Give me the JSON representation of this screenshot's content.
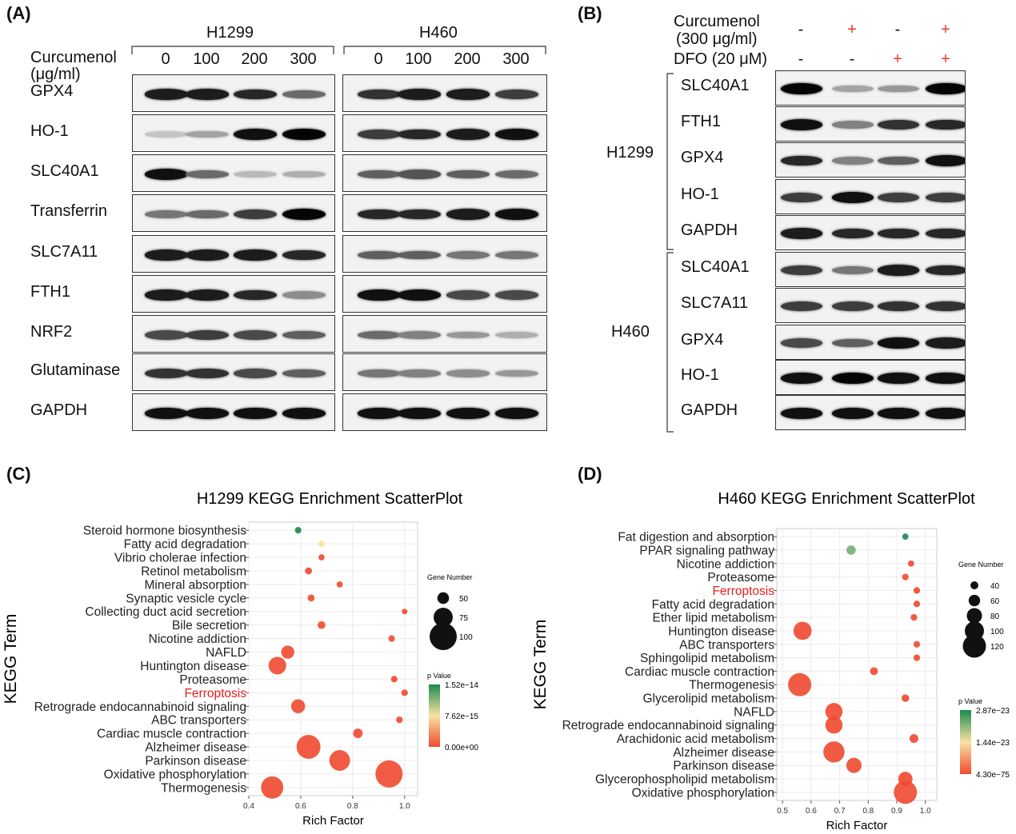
{
  "panels": {
    "A": "(A)",
    "B": "(B)",
    "C": "(C)",
    "D": "(D)"
  },
  "panelA": {
    "cell_lines": [
      "H1299",
      "H460"
    ],
    "treatment_label_line1": "Curcumenol",
    "treatment_label_line2": "(μg/ml)",
    "concentrations": [
      "0",
      "100",
      "200",
      "300"
    ],
    "proteins": [
      "GPX4",
      "HO-1",
      "SLC40A1",
      "Transferrin",
      "SLC7A11",
      "FTH1",
      "NRF2",
      "Glutaminase",
      "GAPDH"
    ],
    "band_intensity_h1299": [
      [
        0.9,
        0.9,
        0.85,
        0.55
      ],
      [
        0.15,
        0.3,
        0.95,
        1.0
      ],
      [
        0.95,
        0.55,
        0.2,
        0.25
      ],
      [
        0.5,
        0.55,
        0.75,
        1.0
      ],
      [
        0.9,
        0.9,
        0.9,
        0.85
      ],
      [
        0.9,
        0.9,
        0.85,
        0.4
      ],
      [
        0.7,
        0.75,
        0.7,
        0.6
      ],
      [
        0.8,
        0.8,
        0.7,
        0.6
      ],
      [
        0.95,
        0.95,
        0.95,
        0.95
      ]
    ],
    "band_intensity_h460": [
      [
        0.8,
        0.9,
        0.9,
        0.75
      ],
      [
        0.75,
        0.85,
        0.9,
        0.95
      ],
      [
        0.6,
        0.65,
        0.6,
        0.55
      ],
      [
        0.85,
        0.85,
        0.9,
        0.95
      ],
      [
        0.6,
        0.6,
        0.5,
        0.5
      ],
      [
        0.95,
        0.95,
        0.7,
        0.7
      ],
      [
        0.55,
        0.45,
        0.35,
        0.25
      ],
      [
        0.5,
        0.45,
        0.4,
        0.35
      ],
      [
        0.95,
        0.95,
        0.95,
        0.95
      ]
    ]
  },
  "panelB": {
    "treatment1_line1": "Curcumenol",
    "treatment1_line2": "(300 μg/ml)",
    "treatment2": "DFO (20 μM)",
    "treatment1_signs": [
      "-",
      "+",
      "-",
      "+"
    ],
    "treatment2_signs": [
      "-",
      "-",
      "+",
      "+"
    ],
    "groups": [
      {
        "name": "H1299",
        "proteins": [
          "SLC40A1",
          "FTH1",
          "GPX4",
          "HO-1",
          "GAPDH"
        ],
        "intensity": [
          [
            1.0,
            0.3,
            0.35,
            1.0
          ],
          [
            0.95,
            0.45,
            0.8,
            0.85
          ],
          [
            0.85,
            0.45,
            0.6,
            0.95
          ],
          [
            0.75,
            0.95,
            0.75,
            0.75
          ],
          [
            0.9,
            0.85,
            0.85,
            0.85
          ]
        ]
      },
      {
        "name": "H460",
        "proteins": [
          "SLC40A1",
          "SLC7A11",
          "GPX4",
          "HO-1",
          "GAPDH"
        ],
        "intensity": [
          [
            0.75,
            0.5,
            0.9,
            0.85
          ],
          [
            0.75,
            0.75,
            0.8,
            0.8
          ],
          [
            0.7,
            0.6,
            0.95,
            0.9
          ],
          [
            0.95,
            1.0,
            0.95,
            0.95
          ],
          [
            0.95,
            0.95,
            0.95,
            0.95
          ]
        ]
      }
    ]
  },
  "panelC": {
    "chart_data": {
      "type": "scatter",
      "title": "H1299 KEGG Enrichment ScatterPlot",
      "xlabel": "Rich Factor",
      "ylabel": "KEGG Term",
      "xlim": [
        0.4,
        1.05
      ],
      "xticks": [
        "0.4",
        "0.6",
        "0.8",
        "1.0"
      ],
      "xtick_values": [
        0.4,
        0.6,
        0.8,
        1.0
      ],
      "terms": [
        "Steroid hormone biosynthesis",
        "Fatty acid degradation",
        "Vibrio cholerae infection",
        "Retinol metabolism",
        "Mineral absorption",
        "Synaptic vesicle cycle",
        "Collecting duct acid secretion",
        "Bile secretion",
        "Nicotine addiction",
        "NAFLD",
        "Huntington disease",
        "Proteasome",
        "Ferroptosis",
        "Retrograde endocannabinoid signaling",
        "ABC transporters",
        "Cardiac muscle contraction",
        "Alzheimer disease",
        "Parkinson disease",
        "Oxidative phosphorylation",
        "Thermogenesis"
      ],
      "rich_factor": [
        0.59,
        0.68,
        0.68,
        0.63,
        0.75,
        0.64,
        1.0,
        0.68,
        0.95,
        0.55,
        0.51,
        0.96,
        1.0,
        0.59,
        0.98,
        0.82,
        0.63,
        0.75,
        0.94,
        0.49
      ],
      "gene_number": [
        30,
        30,
        28,
        32,
        28,
        32,
        25,
        35,
        30,
        55,
        70,
        30,
        30,
        58,
        30,
        42,
        90,
        80,
        100,
        85
      ],
      "p_value_rank": [
        1.0,
        0.5,
        0.0,
        0.0,
        0.0,
        0.0,
        0.0,
        0.0,
        0.0,
        0.0,
        0.0,
        0.0,
        0.0,
        0.0,
        0.0,
        0.0,
        0.0,
        0.0,
        0.0,
        0.0
      ],
      "highlight_term": "Ferroptosis",
      "size_legend_title": "Gene Number",
      "size_legend": [
        "50",
        "75",
        "100"
      ],
      "size_legend_values": [
        50,
        75,
        100
      ],
      "color_legend_title": "p Value",
      "color_legend": [
        "1.52e−14",
        "7.62e−15",
        "0.00e+00"
      ]
    }
  },
  "panelD": {
    "chart_data": {
      "type": "scatter",
      "title": "H460 KEGG Enrichment ScatterPlot",
      "xlabel": "Rich Factor",
      "ylabel": "KEGG Term",
      "xlim": [
        0.48,
        1.04
      ],
      "xticks": [
        "0.5",
        "0.6",
        "0.7",
        "0.8",
        "0.9",
        "1.0"
      ],
      "xtick_values": [
        0.5,
        0.6,
        0.7,
        0.8,
        0.9,
        1.0
      ],
      "terms": [
        "Fat digestion and absorption",
        "PPAR signaling pathway",
        "Nicotine addiction",
        "Proteasome",
        "Ferroptosis",
        "Fatty acid degradation",
        "Ether lipid metabolism",
        "Huntington disease",
        "ABC transporters",
        "Sphingolipid metabolism",
        "Cardiac muscle contraction",
        "Thermogenesis",
        "Glycerolipid metabolism",
        "NAFLD",
        "Retrograde endocannabinoid signaling",
        "Arachidonic acid metabolism",
        "Alzheimer disease",
        "Parkinson disease",
        "Glycerophospholipid metabolism",
        "Oxidative phosphorylation"
      ],
      "rich_factor": [
        0.93,
        0.74,
        0.95,
        0.93,
        0.97,
        0.97,
        0.96,
        0.57,
        0.97,
        0.97,
        0.82,
        0.56,
        0.93,
        0.68,
        0.68,
        0.96,
        0.68,
        0.75,
        0.93,
        0.93
      ],
      "gene_number": [
        30,
        48,
        30,
        32,
        32,
        32,
        32,
        95,
        32,
        32,
        40,
        120,
        38,
        90,
        90,
        45,
        110,
        80,
        75,
        120
      ],
      "p_value_rank": [
        1.0,
        0.8,
        0.0,
        0.0,
        0.0,
        0.0,
        0.0,
        0.0,
        0.0,
        0.0,
        0.0,
        0.0,
        0.0,
        0.0,
        0.0,
        0.0,
        0.0,
        0.0,
        0.0,
        0.0
      ],
      "highlight_term": "Ferroptosis",
      "size_legend_title": "Gene Number",
      "size_legend": [
        "40",
        "60",
        "80",
        "100",
        "120"
      ],
      "size_legend_values": [
        40,
        60,
        80,
        100,
        120
      ],
      "color_legend_title": "p Value",
      "color_legend": [
        "2.87e−23",
        "1.44e−23",
        "4.30e−75"
      ]
    }
  },
  "colors": {
    "low_p": "#f0492f",
    "mid_p": "#f7e3a3",
    "high_p": "#1b8a4e",
    "highlight": "#e21d1d",
    "plus_sign": "#e03a2c"
  }
}
